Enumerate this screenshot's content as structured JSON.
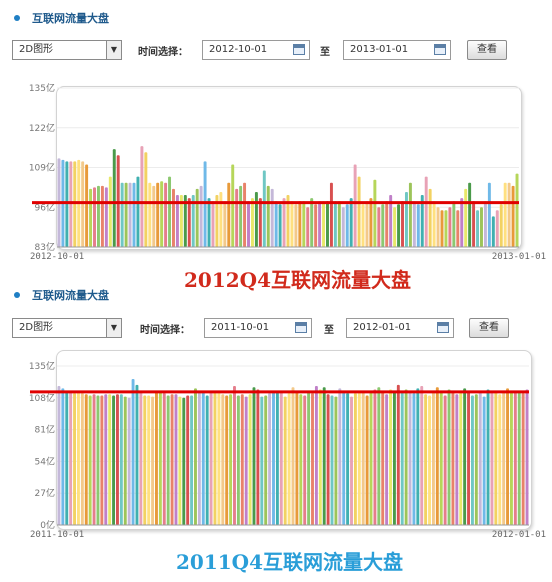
{
  "panel1": {
    "title": "互联网流量大盘",
    "mode": "2D图形",
    "time_label": "时间选择：",
    "start_date": "2012-10-01",
    "to_label": "至",
    "end_date": "2013-01-01",
    "query_label": "查看",
    "caption": "2012Q4互联网流量大盘"
  },
  "panel2": {
    "title": "互联网流量大盘",
    "mode": "2D图形",
    "time_label": "时间选择：",
    "start_date": "2011-10-01",
    "to_label": "至",
    "end_date": "2012-01-01",
    "query_label": "查看",
    "caption": "2011Q4互联网流量大盘"
  },
  "colors": {
    "accent": "#1f7fc4",
    "caption1": "#d12a1c",
    "caption2": "#2a9ed8",
    "ref_line": "#e00000",
    "bar_palette": [
      "#c4b8d9",
      "#e8e86a",
      "#b6d65a",
      "#e8a2b6",
      "#6fc7c4",
      "#e8826a",
      "#f3c98a",
      "#6fb9e8",
      "#4a9a4a",
      "#e57e8c",
      "#f2d262",
      "#9dc45a",
      "#c080c8",
      "#e89a3a",
      "#40b0b0",
      "#d85050",
      "#8cc870",
      "#ffe080"
    ]
  },
  "chart_data": [
    {
      "type": "bar",
      "y_ticks": [
        "83亿",
        "96亿",
        "109亿",
        "122亿",
        "135亿"
      ],
      "ylim": [
        83,
        135
      ],
      "x_tick_labels": [
        "2012-10-01",
        "2013-01-01"
      ],
      "reference_line": 97.5,
      "values": [
        112,
        111.5,
        111,
        111,
        111,
        111.5,
        111,
        110,
        102,
        102.5,
        103,
        103,
        102.5,
        106,
        115,
        113,
        104,
        104,
        104,
        104,
        106,
        116,
        114,
        104,
        103,
        104,
        104.5,
        104,
        106,
        102,
        100,
        100,
        100,
        99,
        100,
        102,
        103,
        111,
        99,
        98,
        100,
        101,
        98,
        104,
        110,
        102,
        103,
        104,
        98,
        99,
        101,
        99,
        108,
        103,
        102,
        98,
        97,
        99,
        100,
        98,
        97,
        98,
        98,
        96,
        99,
        97,
        98,
        98,
        98,
        104,
        98,
        98,
        96,
        97,
        99,
        110,
        106,
        97,
        98,
        99,
        105,
        96,
        97,
        98,
        100,
        96,
        97,
        98,
        101,
        104,
        98,
        97,
        100,
        106,
        102,
        98,
        96,
        95,
        95,
        96,
        98,
        95,
        99,
        102,
        104,
        98,
        95,
        96,
        98,
        104,
        93,
        95,
        97,
        104,
        104,
        103,
        107
      ]
    },
    {
      "type": "bar",
      "y_ticks": [
        "0亿",
        "27亿",
        "54亿",
        "81亿",
        "108亿",
        "135亿"
      ],
      "ylim": [
        0,
        135
      ],
      "x_tick_labels": [
        "2011-10-01",
        "2012-01-01"
      ],
      "reference_line": 113,
      "values": [
        118,
        116,
        114,
        113,
        112,
        113,
        112,
        111,
        110,
        111,
        110,
        110,
        111,
        111,
        110,
        111,
        111,
        109,
        108,
        124,
        119,
        114,
        110,
        110,
        109,
        113,
        113,
        112,
        110,
        111,
        111,
        109,
        108,
        110,
        110,
        116,
        113,
        114,
        110,
        113,
        114,
        114,
        111,
        110,
        111,
        118,
        110,
        111,
        109,
        111,
        117,
        115,
        109,
        110,
        112,
        113,
        114,
        113,
        109,
        112,
        117,
        114,
        111,
        110,
        113,
        112,
        118,
        115,
        117,
        111,
        110,
        109,
        116,
        113,
        112,
        109,
        112,
        114,
        113,
        110,
        113,
        115,
        117,
        113,
        111,
        115,
        114,
        119,
        113,
        115,
        114,
        112,
        116,
        118,
        111,
        110,
        114,
        117,
        114,
        110,
        115,
        113,
        111,
        112,
        116,
        113,
        110,
        111,
        113,
        109,
        115,
        114,
        113,
        111,
        114,
        116,
        113,
        113,
        114,
        112,
        115
      ]
    }
  ]
}
